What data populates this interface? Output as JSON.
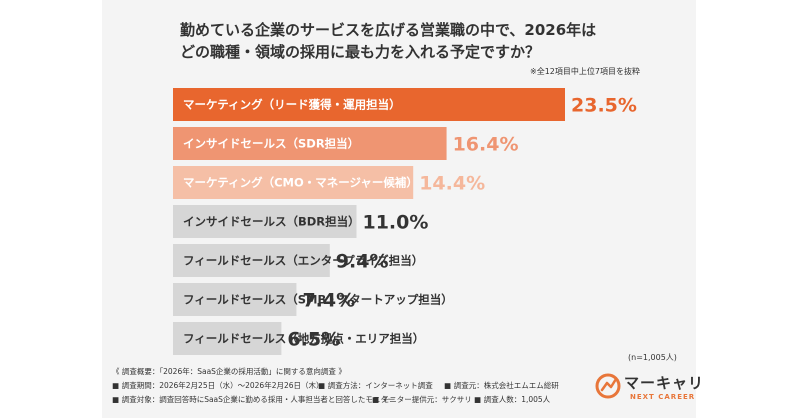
{
  "title_line1": "勤めている企業のサービスを広げる営業職の中で、2026年は",
  "title_line2": "どの職種・領域の採用に最も力を入れる予定ですか？",
  "note": "※全12項目中上位7項目を抜粋",
  "sample_size": "(n=1,005人)",
  "footer": {
    "heading": "《 調査概要：「2026年：SaaS企業の採用活動」に関する意向調査 》",
    "row1": [
      "調査期間：2026年2月25日（水）〜2026年2月26日（木）",
      "調査方法：インターネット調査",
      "調査元：株式会社エムエム総研"
    ],
    "row2": [
      "調査対象：調査回答時にSaaS企業に勤める採用・人事担当者と回答したモニター",
      "モニター提供元：サクサリ",
      "調査人数：1,005人"
    ]
  },
  "logo": {
    "text": "マーキャリ",
    "sub": "NEXT CAREER"
  },
  "colors": {
    "top1": "#e8662e",
    "top2": "#ef9572",
    "top3": "#f5bfa6",
    "rest": "#d6d6d6",
    "accent": "#e8662e"
  },
  "chart_data": {
    "type": "bar",
    "orientation": "horizontal",
    "categories": [
      "マーケティング（リード獲得・運用担当）",
      "インサイドセールス（SDR担当）",
      "マーケティング（CMO・マネージャー候補）",
      "インサイドセールス（BDR担当）",
      "フィールドセールス（エンタープライズ担当）",
      "フィールドセールス（SMB・スタートアップ担当）",
      "フィールドセールス（地方拠点・エリア担当）"
    ],
    "values": [
      23.5,
      16.4,
      14.4,
      11.0,
      9.4,
      7.4,
      6.5
    ],
    "value_labels": [
      "23.5%",
      "16.4%",
      "14.4%",
      "11.0%",
      "9.4%",
      "7.4%",
      "6.5%"
    ],
    "unit": "%"
  }
}
